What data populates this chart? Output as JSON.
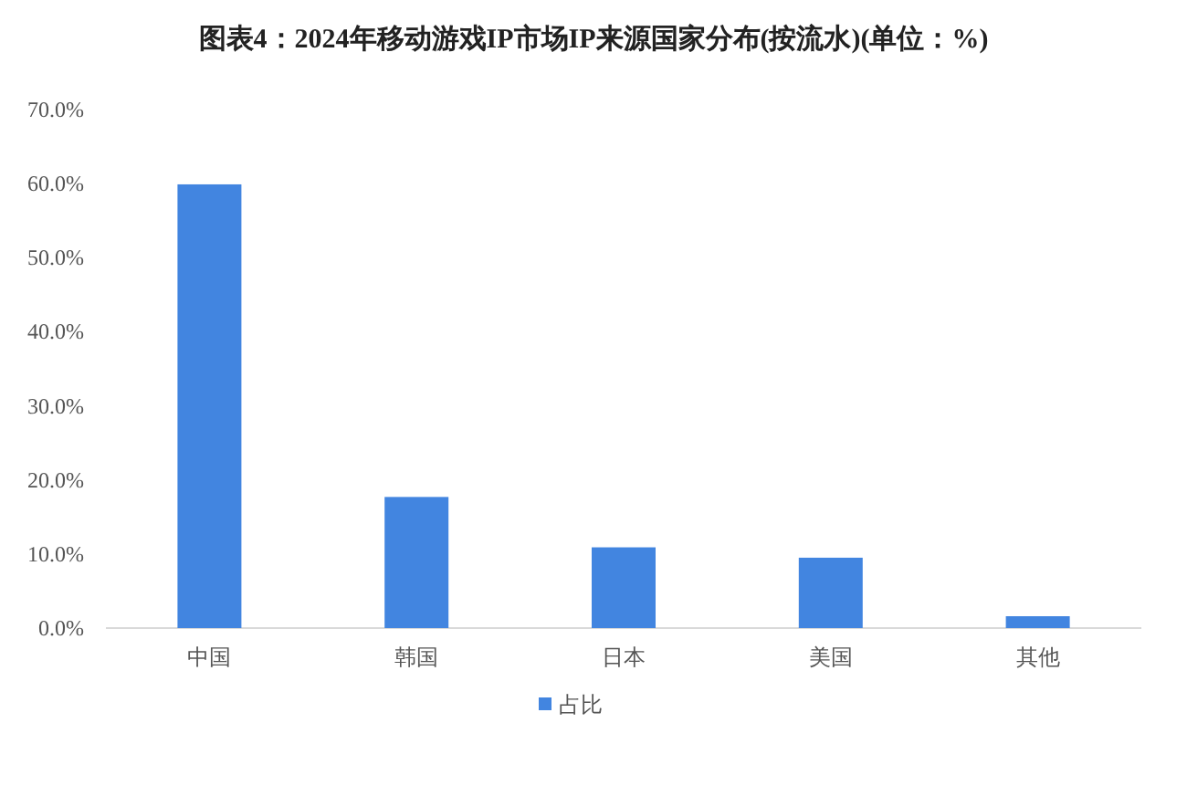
{
  "chart_data": {
    "type": "bar",
    "title": "图表4：2024年移动游戏IP市场IP来源国家分布(按流水)(单位：%)",
    "categories": [
      "中国",
      "韩国",
      "日本",
      "美国",
      "其他"
    ],
    "series": [
      {
        "name": "占比",
        "color": "#4285e0",
        "values": [
          59.9,
          17.7,
          10.9,
          9.5,
          1.6
        ]
      }
    ],
    "ylim": [
      0,
      70
    ],
    "yticks": [
      {
        "value": 0,
        "label": "0.0%"
      },
      {
        "value": 10,
        "label": "10.0%"
      },
      {
        "value": 20,
        "label": "20.0%"
      },
      {
        "value": 30,
        "label": "30.0%"
      },
      {
        "value": 40,
        "label": "40.0%"
      },
      {
        "value": 50,
        "label": "50.0%"
      },
      {
        "value": 60,
        "label": "60.0%"
      },
      {
        "value": 70,
        "label": "70.0%"
      }
    ],
    "grid": false,
    "legend": "bottom"
  }
}
